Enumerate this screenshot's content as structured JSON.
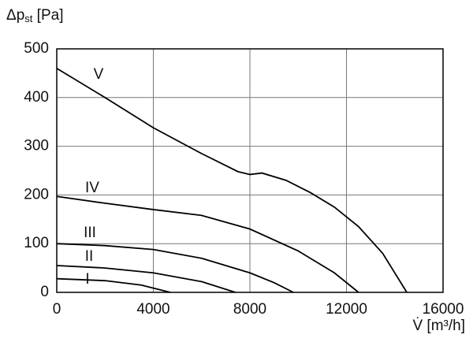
{
  "chart_data": {
    "type": "line",
    "ylabel": [
      "Δp",
      "st",
      " [Pa]"
    ],
    "xlabel": "V̇ [m³/h]",
    "xlim": [
      0,
      16000
    ],
    "xticks": [
      0,
      4000,
      8000,
      12000,
      16000
    ],
    "ylim": [
      0,
      500
    ],
    "yticks": [
      0,
      100,
      200,
      300,
      400,
      500
    ],
    "grid": true,
    "series": [
      {
        "name": "V",
        "color": "#000000",
        "x": [
          0,
          2000,
          4000,
          6000,
          7500,
          8000,
          8500,
          9500,
          10500,
          11500,
          12500,
          13500,
          14500
        ],
        "values": [
          460,
          400,
          338,
          285,
          248,
          242,
          245,
          230,
          205,
          175,
          135,
          80,
          0
        ]
      },
      {
        "name": "IV",
        "color": "#000000",
        "x": [
          0,
          2000,
          4000,
          6000,
          8000,
          10000,
          11500,
          12500
        ],
        "values": [
          197,
          183,
          170,
          158,
          130,
          85,
          40,
          0
        ]
      },
      {
        "name": "III",
        "color": "#000000",
        "x": [
          0,
          2000,
          4000,
          6000,
          8000,
          9000,
          9800
        ],
        "values": [
          100,
          96,
          88,
          70,
          40,
          20,
          0
        ]
      },
      {
        "name": "II",
        "color": "#000000",
        "x": [
          0,
          2000,
          4000,
          6000,
          7400
        ],
        "values": [
          55,
          50,
          40,
          22,
          0
        ]
      },
      {
        "name": "I",
        "color": "#000000",
        "x": [
          0,
          2000,
          3500,
          4700
        ],
        "values": [
          28,
          24,
          15,
          0
        ]
      }
    ]
  }
}
